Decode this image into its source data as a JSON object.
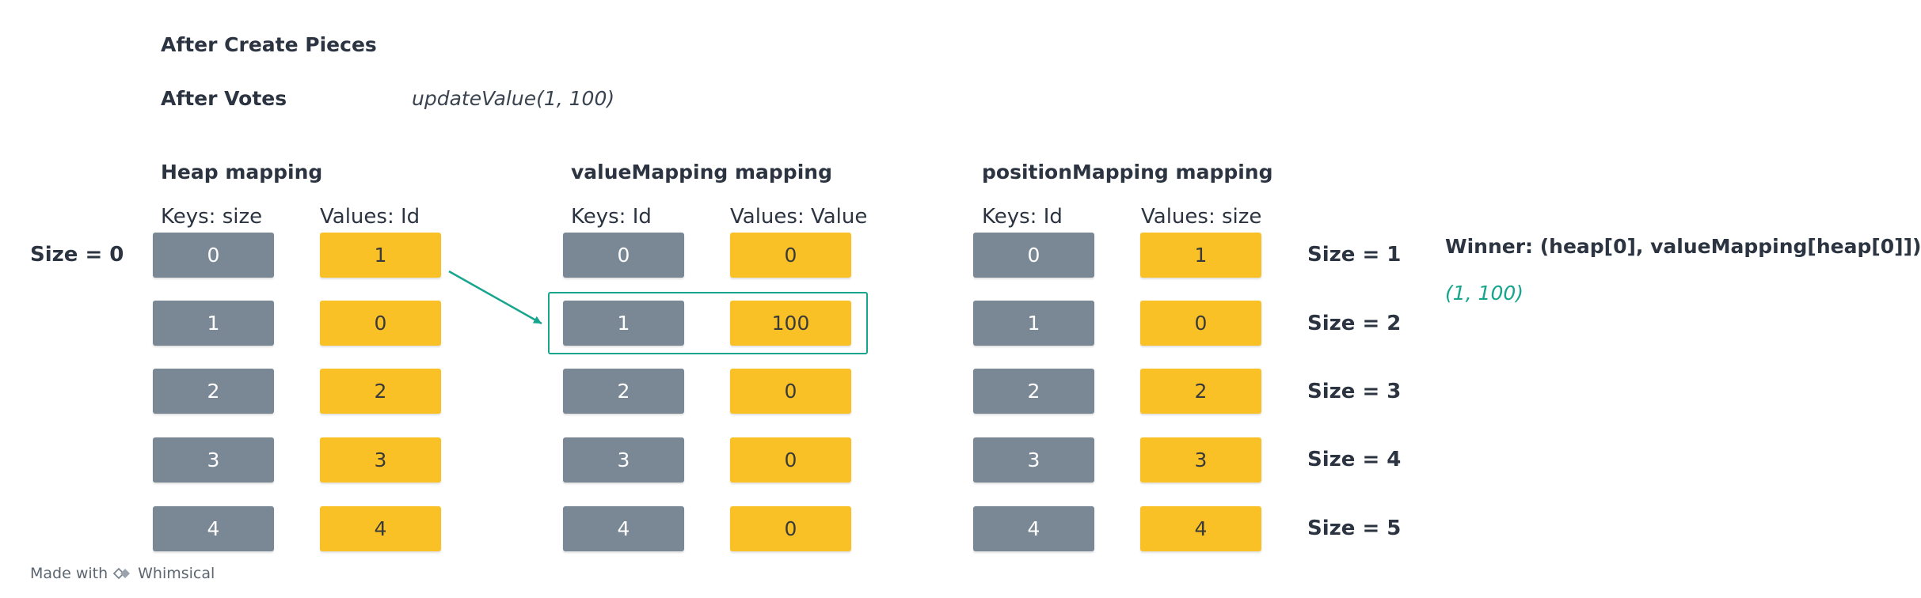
{
  "header": {
    "after_create": "After Create Pieces",
    "after_votes": "After Votes",
    "call": "updateValue(1, 100)"
  },
  "tables": [
    {
      "title": "Heap mapping",
      "keys_header": "Keys: size",
      "values_header": "Values: Id",
      "keys": [
        "0",
        "1",
        "2",
        "3",
        "4"
      ],
      "values": [
        "1",
        "0",
        "2",
        "3",
        "4"
      ]
    },
    {
      "title": "valueMapping mapping",
      "keys_header": "Keys: Id",
      "values_header": "Values: Value",
      "keys": [
        "0",
        "1",
        "2",
        "3",
        "4"
      ],
      "values": [
        "0",
        "100",
        "0",
        "0",
        "0"
      ]
    },
    {
      "title": "positionMapping mapping",
      "keys_header": "Keys: Id",
      "values_header": "Values: size",
      "keys": [
        "0",
        "1",
        "2",
        "3",
        "4"
      ],
      "values": [
        "1",
        "0",
        "2",
        "3",
        "4"
      ]
    }
  ],
  "size_zero_label": "Size = 0",
  "size_labels": [
    "Size = 1",
    "Size = 2",
    "Size = 3",
    "Size = 4",
    "Size = 5"
  ],
  "winner": {
    "text": "Winner: (heap[0], valueMapping[heap[0]])",
    "result": "(1, 100)"
  },
  "footer": {
    "made_with": "Made with",
    "brand": "Whimsical"
  },
  "colors": {
    "key_cell": "#7a8896",
    "value_cell": "#f9c125",
    "highlight": "#17a58e",
    "text": "#2b3440"
  }
}
